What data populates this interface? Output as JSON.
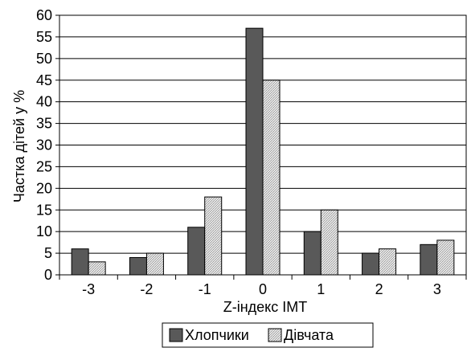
{
  "chart_data": {
    "type": "bar",
    "title": "",
    "xlabel": "Z-індекс ІМТ",
    "ylabel": "Частка дітей у %",
    "categories": [
      "-3",
      "-2",
      "-1",
      "0",
      "1",
      "2",
      "3"
    ],
    "ylim": [
      0,
      60
    ],
    "yticks": [
      0,
      5,
      10,
      15,
      20,
      25,
      30,
      35,
      40,
      45,
      50,
      55,
      60
    ],
    "grid": true,
    "legend_position": "bottom",
    "series": [
      {
        "name": "Хлопчики",
        "values": [
          6,
          4,
          11,
          57,
          10,
          5,
          7
        ],
        "color": "#595959"
      },
      {
        "name": "Дівчата",
        "values": [
          3,
          5,
          18,
          45,
          15,
          6,
          8
        ],
        "color": "#d9d9d9"
      }
    ]
  }
}
